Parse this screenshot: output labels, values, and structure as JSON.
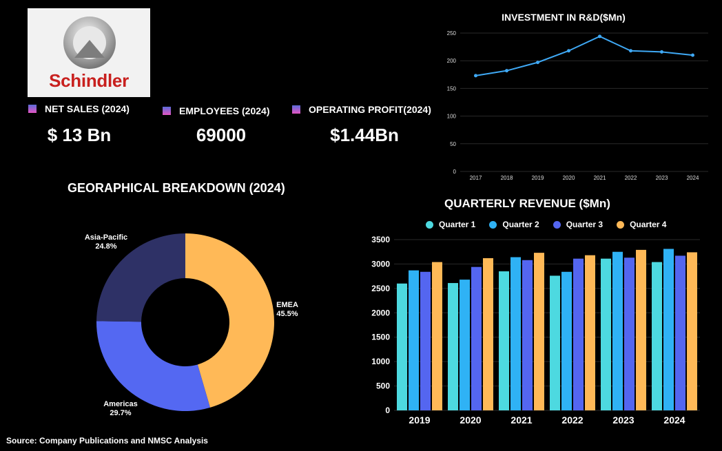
{
  "logo": {
    "text": "Schindler"
  },
  "kpis": [
    {
      "label": "NET SALES (2024)",
      "value": "$ 13 Bn"
    },
    {
      "label": "EMPLOYEES (2024)",
      "value": "69000"
    },
    {
      "label": "OPERATING PROFIT(2024)",
      "value": "$1.44Bn"
    }
  ],
  "titles": {
    "rd": "INVESTMENT IN R&D($Mn)",
    "geo": "GEORAPHICAL BREAKDOWN (2024)",
    "quarterly": "QUARTERLY REVENUE ($Mn)"
  },
  "source": "Source: Company Publications and NMSC Analysis",
  "colors": {
    "line": "#3fa9f5",
    "q1": "#4dd9e0",
    "q2": "#2fb2f5",
    "q3": "#5466f0",
    "q4": "#ffb957",
    "emea": "#ffb957",
    "americas": "#5468f2",
    "apac": "#2e3166"
  },
  "chart_data": [
    {
      "type": "line",
      "title": "INVESTMENT IN R&D($Mn)",
      "x": [
        "2017",
        "2018",
        "2019",
        "2020",
        "2021",
        "2022",
        "2023",
        "2024"
      ],
      "values": [
        173,
        182,
        197,
        218,
        244,
        218,
        216,
        210
      ],
      "ylim": [
        0,
        250
      ],
      "yticks": [
        "0",
        "50",
        "100",
        "150",
        "200",
        "250"
      ],
      "grid": true
    },
    {
      "type": "pie",
      "title": "GEORAPHICAL BREAKDOWN (2024)",
      "slices": [
        {
          "name": "EMEA",
          "value": 45.5,
          "label": "45.5%"
        },
        {
          "name": "Americas",
          "value": 29.7,
          "label": "29.7%"
        },
        {
          "name": "Asia-Pacific",
          "value": 24.8,
          "label": "24.8%"
        }
      ]
    },
    {
      "type": "bar",
      "title": "QUARTERLY REVENUE ($Mn)",
      "categories": [
        "2019",
        "2020",
        "2021",
        "2022",
        "2023",
        "2024"
      ],
      "series": [
        {
          "name": "Quarter 1",
          "values": [
            2600,
            2610,
            2850,
            2760,
            3110,
            3040
          ]
        },
        {
          "name": "Quarter 2",
          "values": [
            2870,
            2680,
            3140,
            2840,
            3250,
            3310
          ]
        },
        {
          "name": "Quarter 3",
          "values": [
            2840,
            2940,
            3080,
            3110,
            3130,
            3170
          ]
        },
        {
          "name": "Quarter 4",
          "values": [
            3040,
            3120,
            3230,
            3180,
            3290,
            3240
          ]
        }
      ],
      "ylim": [
        0,
        3500
      ],
      "yticks": [
        "0",
        "500",
        "1000",
        "1500",
        "2000",
        "2500",
        "3000",
        "3500"
      ],
      "legend": "top",
      "grid": true
    }
  ]
}
